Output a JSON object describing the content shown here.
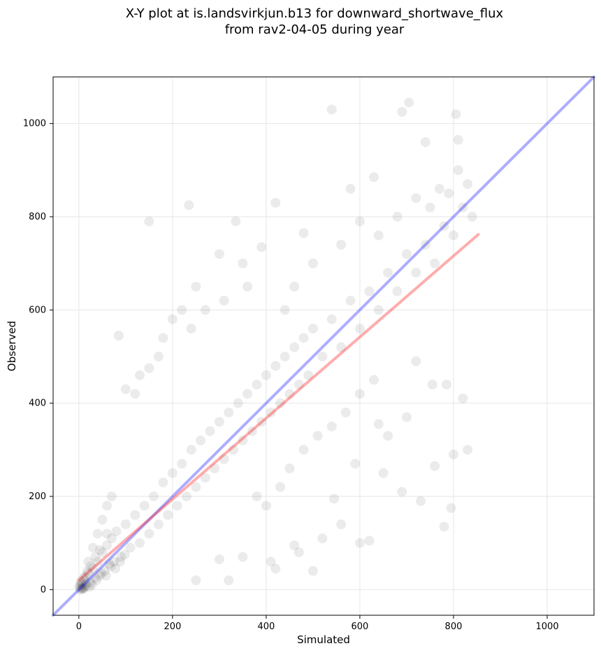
{
  "chart_data": {
    "type": "scatter",
    "title_lines": [
      "X-Y plot at is.landsvirkjun.b13 for downward_shortwave_flux",
      "from rav2-04-05 during year"
    ],
    "xlabel": "Simulated",
    "ylabel": "Observed",
    "xlim": [
      -55,
      1100
    ],
    "ylim": [
      -55,
      1100
    ],
    "xticks": [
      0,
      200,
      400,
      600,
      800,
      1000
    ],
    "yticks": [
      0,
      200,
      400,
      600,
      800,
      1000
    ],
    "grid": true,
    "point_color": "#000000",
    "point_opacity": 0.08,
    "series": [
      {
        "values_xy": [
          [
            2,
            5
          ],
          [
            5,
            12
          ],
          [
            8,
            3
          ],
          [
            12,
            20
          ],
          [
            15,
            8
          ],
          [
            20,
            35
          ],
          [
            25,
            15
          ],
          [
            30,
            45
          ],
          [
            35,
            25
          ],
          [
            40,
            60
          ],
          [
            45,
            30
          ],
          [
            50,
            80
          ],
          [
            55,
            40
          ],
          [
            60,
            95
          ],
          [
            65,
            55
          ],
          [
            70,
            110
          ],
          [
            75,
            60
          ],
          [
            80,
            125
          ],
          [
            90,
            70
          ],
          [
            100,
            140
          ],
          [
            110,
            90
          ],
          [
            120,
            160
          ],
          [
            130,
            100
          ],
          [
            140,
            180
          ],
          [
            150,
            120
          ],
          [
            160,
            200
          ],
          [
            170,
            140
          ],
          [
            180,
            230
          ],
          [
            190,
            160
          ],
          [
            200,
            250
          ],
          [
            210,
            180
          ],
          [
            220,
            270
          ],
          [
            230,
            200
          ],
          [
            240,
            300
          ],
          [
            250,
            220
          ],
          [
            260,
            320
          ],
          [
            270,
            240
          ],
          [
            280,
            340
          ],
          [
            290,
            260
          ],
          [
            300,
            360
          ],
          [
            310,
            280
          ],
          [
            320,
            380
          ],
          [
            330,
            300
          ],
          [
            340,
            400
          ],
          [
            350,
            320
          ],
          [
            360,
            420
          ],
          [
            370,
            340
          ],
          [
            380,
            440
          ],
          [
            390,
            360
          ],
          [
            400,
            460
          ],
          [
            410,
            380
          ],
          [
            420,
            480
          ],
          [
            430,
            400
          ],
          [
            440,
            500
          ],
          [
            450,
            420
          ],
          [
            460,
            520
          ],
          [
            470,
            440
          ],
          [
            480,
            540
          ],
          [
            490,
            460
          ],
          [
            500,
            560
          ],
          [
            520,
            500
          ],
          [
            540,
            580
          ],
          [
            560,
            520
          ],
          [
            580,
            620
          ],
          [
            600,
            560
          ],
          [
            620,
            640
          ],
          [
            640,
            600
          ],
          [
            660,
            680
          ],
          [
            680,
            640
          ],
          [
            700,
            720
          ],
          [
            720,
            680
          ],
          [
            740,
            740
          ],
          [
            760,
            700
          ],
          [
            780,
            780
          ],
          [
            800,
            760
          ],
          [
            820,
            820
          ],
          [
            840,
            800
          ],
          [
            830,
            870
          ],
          [
            810,
            900
          ],
          [
            790,
            850
          ],
          [
            150,
            790
          ],
          [
            235,
            825
          ],
          [
            335,
            790
          ],
          [
            420,
            830
          ],
          [
            540,
            1030
          ],
          [
            690,
            1025
          ],
          [
            705,
            1045
          ],
          [
            805,
            1020
          ],
          [
            740,
            960
          ],
          [
            810,
            965
          ],
          [
            85,
            545
          ],
          [
            150,
            475
          ],
          [
            200,
            580
          ],
          [
            250,
            650
          ],
          [
            300,
            720
          ],
          [
            350,
            700
          ],
          [
            390,
            735
          ],
          [
            480,
            765
          ],
          [
            580,
            860
          ],
          [
            630,
            885
          ],
          [
            410,
            60
          ],
          [
            470,
            80
          ],
          [
            520,
            110
          ],
          [
            560,
            140
          ],
          [
            600,
            100
          ],
          [
            620,
            105
          ],
          [
            650,
            250
          ],
          [
            690,
            210
          ],
          [
            730,
            190
          ],
          [
            760,
            265
          ],
          [
            780,
            135
          ],
          [
            795,
            175
          ],
          [
            800,
            290
          ],
          [
            830,
            300
          ],
          [
            820,
            410
          ],
          [
            785,
            440
          ],
          [
            755,
            440
          ],
          [
            720,
            490
          ],
          [
            700,
            370
          ],
          [
            660,
            330
          ],
          [
            320,
            20
          ],
          [
            250,
            20
          ],
          [
            300,
            65
          ],
          [
            350,
            70
          ],
          [
            420,
            45
          ],
          [
            460,
            95
          ],
          [
            500,
            40
          ],
          [
            545,
            195
          ],
          [
            590,
            270
          ],
          [
            640,
            355
          ],
          [
            100,
            430
          ],
          [
            120,
            420
          ],
          [
            130,
            460
          ],
          [
            170,
            500
          ],
          [
            180,
            540
          ],
          [
            220,
            600
          ],
          [
            240,
            560
          ],
          [
            270,
            600
          ],
          [
            310,
            620
          ],
          [
            360,
            650
          ],
          [
            440,
            600
          ],
          [
            460,
            650
          ],
          [
            500,
            700
          ],
          [
            560,
            740
          ],
          [
            600,
            790
          ],
          [
            640,
            760
          ],
          [
            680,
            800
          ],
          [
            720,
            840
          ],
          [
            750,
            820
          ],
          [
            770,
            860
          ],
          [
            380,
            200
          ],
          [
            400,
            180
          ],
          [
            430,
            220
          ],
          [
            450,
            260
          ],
          [
            480,
            300
          ],
          [
            510,
            330
          ],
          [
            540,
            350
          ],
          [
            570,
            380
          ],
          [
            600,
            420
          ],
          [
            630,
            450
          ],
          [
            20,
            60
          ],
          [
            30,
            90
          ],
          [
            40,
            120
          ],
          [
            50,
            150
          ],
          [
            60,
            180
          ],
          [
            70,
            200
          ],
          [
            60,
            120
          ],
          [
            45,
            85
          ],
          [
            35,
            70
          ],
          [
            25,
            50
          ],
          [
            10,
            25
          ],
          [
            18,
            40
          ],
          [
            28,
            10
          ],
          [
            38,
            20
          ],
          [
            48,
            35
          ],
          [
            58,
            30
          ],
          [
            68,
            50
          ],
          [
            78,
            45
          ],
          [
            88,
            60
          ],
          [
            98,
            75
          ],
          [
            3,
            0
          ],
          [
            6,
            2
          ],
          [
            9,
            1
          ],
          [
            1,
            8
          ],
          [
            4,
            18
          ],
          [
            7,
            10
          ],
          [
            11,
            4
          ],
          [
            14,
            28
          ],
          [
            16,
            14
          ],
          [
            22,
            6
          ]
        ]
      }
    ],
    "fit_lines": [
      {
        "color": "#0000ff",
        "opacity": 0.32,
        "from": [
          -55,
          -55
        ],
        "to": [
          1100,
          1100
        ]
      },
      {
        "color": "#ff0000",
        "opacity": 0.32,
        "from": [
          0,
          20
        ],
        "to": [
          853,
          762
        ]
      }
    ]
  }
}
